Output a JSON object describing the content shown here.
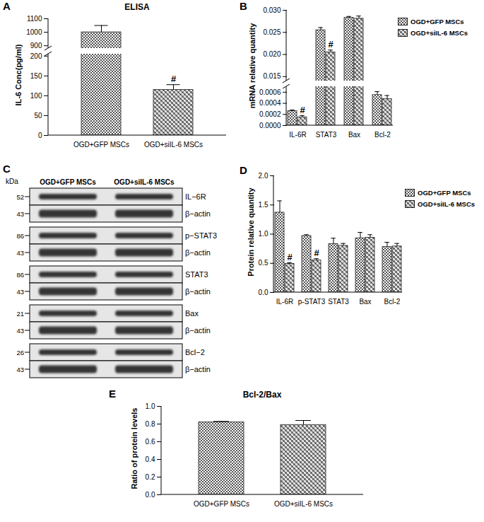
{
  "chart_data": [
    {
      "panel": "A",
      "type": "bar",
      "title": "ELISA",
      "y_label": "IL-6 Conc(pg/ml)",
      "categories": [
        "OGD+GFP MSCs",
        "OGD+siIL-6 MSCs"
      ],
      "values": [
        1000,
        115
      ],
      "errors": [
        50,
        13
      ],
      "colors": [
        "#555555",
        "#6e6e6e"
      ],
      "ylim": [
        0,
        1100
      ],
      "axis_break": [
        205,
        880
      ],
      "yticks": [
        0,
        50,
        100,
        150,
        200,
        900,
        1000,
        1100
      ],
      "annotations": [
        {
          "category": "OGD+siIL-6 MSCs",
          "text": "#"
        }
      ]
    },
    {
      "panel": "B",
      "type": "bar",
      "y_label": "mRNA relative quantity",
      "categories": [
        "IL-6R",
        "STAT3",
        "Bax",
        "Bcl-2"
      ],
      "series": [
        {
          "name": "OGD+GFP MSCs",
          "color": "#555555",
          "values": [
            0.00026,
            0.0255,
            0.0283,
            0.00055
          ],
          "errors": [
            2e-05,
            0.0006,
            0.0003,
            6e-05
          ]
        },
        {
          "name": "OGD+siIL-6 MSCs",
          "color": "#6e6e6e",
          "values": [
            0.00015,
            0.0205,
            0.0281,
            0.00048
          ],
          "errors": [
            3e-05,
            0.0005,
            0.0006,
            6e-05
          ]
        }
      ],
      "ylim": [
        0,
        0.03
      ],
      "axis_break": [
        0.0007,
        0.014
      ],
      "yticks": [
        {
          "value": 0,
          "label": "0.0000"
        },
        0.0002,
        0.0004,
        0.0006,
        0.015,
        {
          "value": 0.02,
          "label": "0.020"
        },
        0.025,
        {
          "value": 0.03,
          "label": "0.030"
        }
      ],
      "legend": "right",
      "annotations": [
        {
          "category": "IL-6R",
          "series": "OGD+siIL-6 MSCs",
          "text": "#"
        },
        {
          "category": "STAT3",
          "series": "OGD+siIL-6 MSCs",
          "text": "#"
        }
      ]
    },
    {
      "panel": "C",
      "type": "western_blot",
      "unit_label": "kDa",
      "columns": [
        "OGD+GFP MSCs",
        "OGD+siIL-6 MSCs"
      ],
      "blots": [
        [
          {
            "kda": 52,
            "label": "IL−6R"
          },
          {
            "kda": 43,
            "label": "β−actin"
          }
        ],
        [
          {
            "kda": 86,
            "label": "p−STAT3"
          },
          {
            "kda": 43,
            "label": "β−actin"
          }
        ],
        [
          {
            "kda": 86,
            "label": "STAT3"
          },
          {
            "kda": 43,
            "label": "β−actin"
          }
        ],
        [
          {
            "kda": 21,
            "label": "Bax"
          },
          {
            "kda": 43,
            "label": "β−actin"
          }
        ],
        [
          {
            "kda": 26,
            "label": "Bcl−2"
          },
          {
            "kda": 43,
            "label": "β−actin"
          }
        ]
      ]
    },
    {
      "panel": "D",
      "type": "bar",
      "y_label": "Protein relative quantity",
      "categories": [
        "IL-6R",
        "p-STAT3",
        "STAT3",
        "Bax",
        "Bcl-2"
      ],
      "series": [
        {
          "name": "OGD+GFP MSCs",
          "color": "#555555",
          "values": [
            1.37,
            0.97,
            0.83,
            0.93,
            0.78
          ],
          "errors": [
            0.2,
            0.02,
            0.1,
            0.1,
            0.08
          ]
        },
        {
          "name": "OGD+siIL-6 MSCs",
          "color": "#6e6e6e",
          "values": [
            0.49,
            0.55,
            0.8,
            0.94,
            0.79
          ],
          "errors": [
            0.02,
            0.03,
            0.04,
            0.05,
            0.05
          ]
        }
      ],
      "ylim": [
        0,
        2
      ],
      "yticks": [
        {
          "value": 0,
          "label": "0.0"
        },
        0.5,
        {
          "value": 1,
          "label": "1.0"
        },
        1.5,
        {
          "value": 2,
          "label": "2.0"
        }
      ],
      "legend": "right",
      "annotations": [
        {
          "category": "IL-6R",
          "series": "OGD+siIL-6 MSCs",
          "text": "#"
        },
        {
          "category": "p-STAT3",
          "series": "OGD+siIL-6 MSCs",
          "text": "#"
        }
      ]
    },
    {
      "panel": "E",
      "type": "bar",
      "title": "Bcl-2/Bax",
      "y_label": "Ratio of protein levels",
      "categories": [
        "OGD+GFP MSCs",
        "OGD+siIL-6 MSCs"
      ],
      "values": [
        0.82,
        0.79
      ],
      "errors": [
        0.01,
        0.05
      ],
      "colors": [
        "#555555",
        "#6e6e6e"
      ],
      "ylim": [
        0,
        1
      ],
      "yticks": [
        {
          "value": 0,
          "label": "0.0"
        },
        0.2,
        0.4,
        0.6,
        0.8,
        {
          "value": 1,
          "label": "1.0"
        }
      ]
    }
  ]
}
